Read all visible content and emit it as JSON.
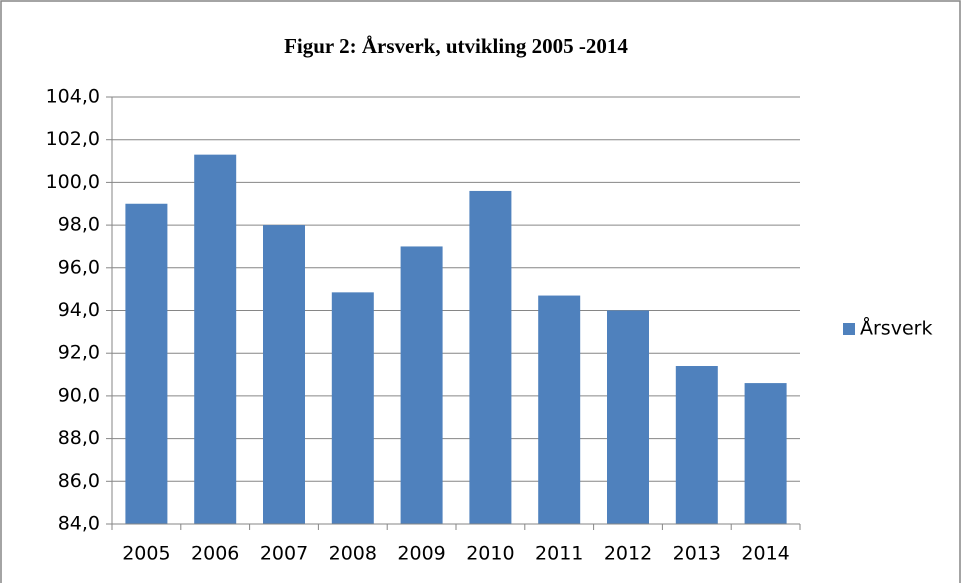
{
  "chart_data": {
    "type": "bar",
    "title": "Figur 2: Årsverk, utvikling 2005 -2014",
    "categories": [
      "2005",
      "2006",
      "2007",
      "2008",
      "2009",
      "2010",
      "2011",
      "2012",
      "2013",
      "2014"
    ],
    "series": [
      {
        "name": "Årsverk",
        "color": "#4f81bd",
        "values": [
          99.0,
          101.3,
          98.0,
          94.85,
          97.0,
          99.6,
          94.7,
          94.0,
          91.4,
          90.6
        ]
      }
    ],
    "ylim": [
      84,
      104
    ],
    "yticks": [
      {
        "value": 84,
        "label": "84,0"
      },
      {
        "value": 86,
        "label": "86,0"
      },
      {
        "value": 88,
        "label": "88,0"
      },
      {
        "value": 90,
        "label": "90,0"
      },
      {
        "value": 92,
        "label": "92,0"
      },
      {
        "value": 94,
        "label": "94,0"
      },
      {
        "value": 96,
        "label": "96,0"
      },
      {
        "value": 98,
        "label": "98,0"
      },
      {
        "value": 100,
        "label": "100,0"
      },
      {
        "value": 102,
        "label": "102,0"
      },
      {
        "value": 104,
        "label": "104,0"
      }
    ],
    "grid": true,
    "legend": "right"
  }
}
